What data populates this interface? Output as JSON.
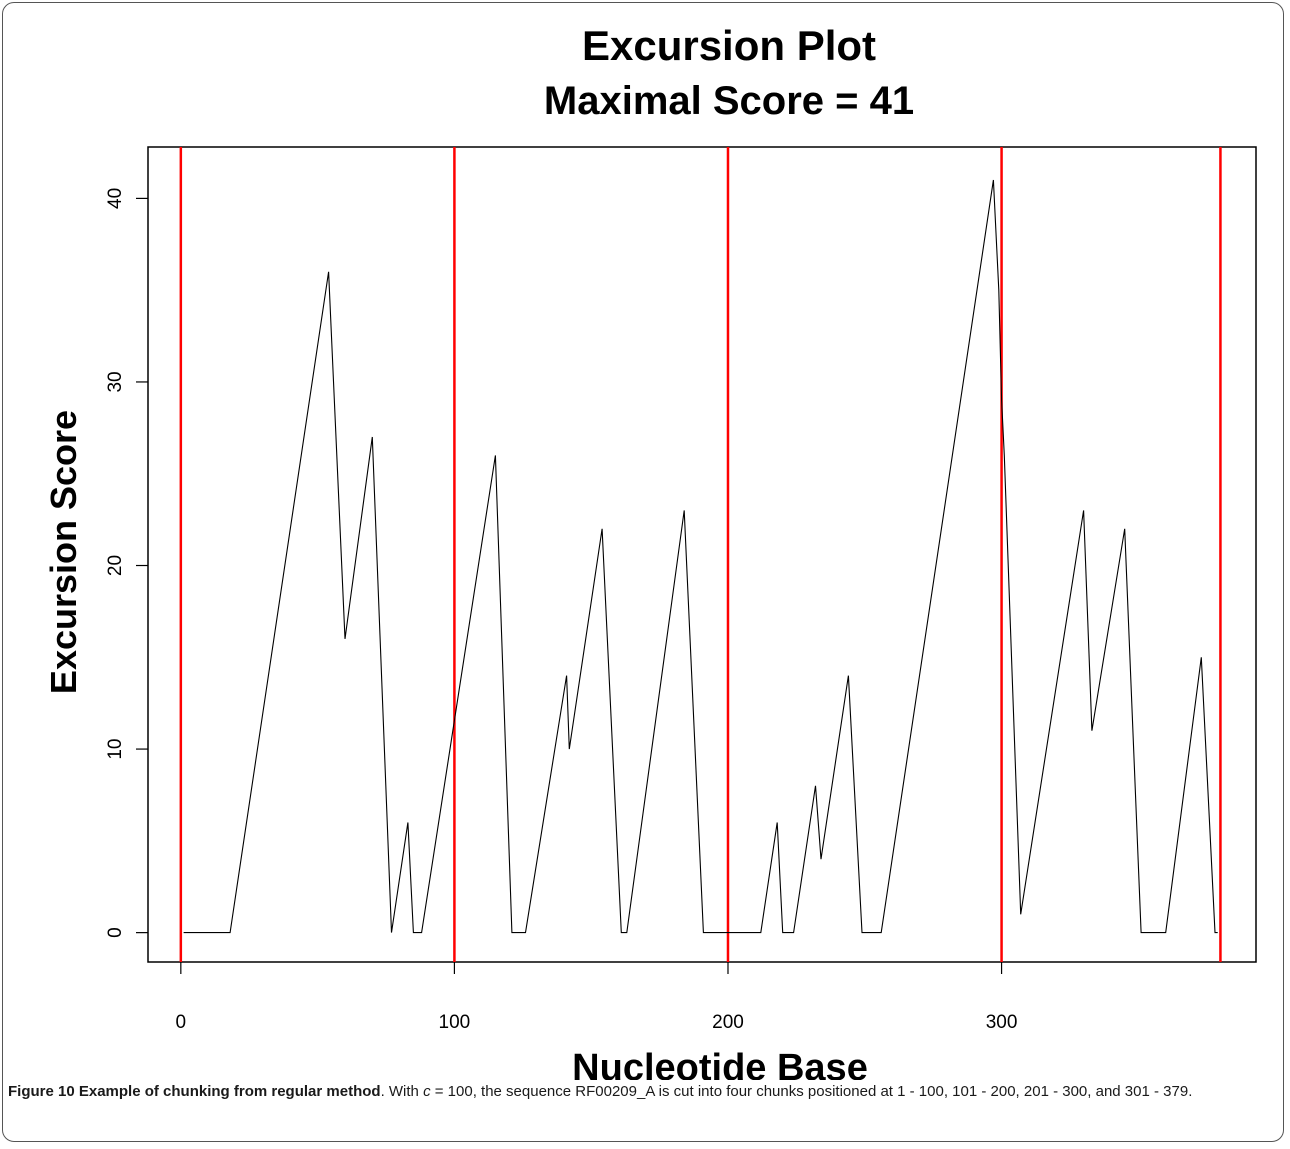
{
  "chart_data": {
    "type": "line",
    "title": "Excursion Plot",
    "subtitle": "Maximal Score = 41",
    "xlabel": "Nucleotide Base",
    "ylabel": "Excursion Score",
    "xlim": [
      -12,
      393
    ],
    "ylim": [
      -1.6,
      42.8
    ],
    "x_ticks": [
      0,
      100,
      200,
      300
    ],
    "x_tick_labels": [
      "0",
      "100",
      "200",
      "300"
    ],
    "y_ticks": [
      0,
      10,
      20,
      30,
      40
    ],
    "y_tick_labels": [
      "0",
      "10",
      "20",
      "30",
      "40"
    ],
    "grid": false,
    "legend": "none",
    "colors": {
      "line": "#000000",
      "chunk_boundary": "#ff0000"
    },
    "chunk_boundaries": [
      0,
      100,
      200,
      300,
      380
    ],
    "series": [
      {
        "x": [
          1,
          18,
          54,
          60,
          70,
          77,
          83,
          85,
          88,
          115,
          121,
          126,
          141,
          142,
          154,
          161,
          163,
          184,
          191,
          212,
          218,
          220,
          224,
          232,
          234,
          244,
          249,
          256,
          297,
          299,
          300,
          301,
          307,
          330,
          333,
          345,
          351,
          360,
          373,
          378,
          379
        ],
        "y": [
          0,
          0,
          36,
          16,
          27,
          0,
          6,
          0,
          0,
          26,
          0,
          0,
          14,
          10,
          22,
          0,
          0,
          23,
          0,
          0,
          6,
          0,
          0,
          8,
          4,
          14,
          0,
          0,
          41,
          35,
          29,
          26,
          1,
          23,
          11,
          22,
          0,
          0,
          15,
          0,
          0
        ]
      }
    ]
  },
  "caption": {
    "label": "Figure 10 Example of chunking from regular method",
    "text_before": ". With ",
    "var": "c",
    "text_after": " = 100, the sequence RF00209_A is cut into four chunks positioned at 1 - 100, 101 - 200, 201 - 300, and 301 - 379."
  }
}
